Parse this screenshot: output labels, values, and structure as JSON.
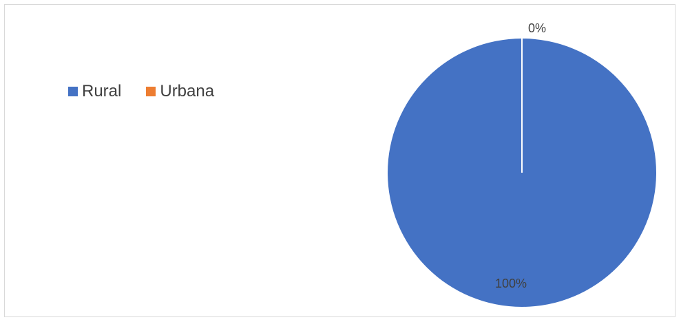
{
  "chart_data": {
    "type": "pie",
    "categories": [
      "Rural",
      "Urbana"
    ],
    "values": [
      100,
      0
    ],
    "data_labels": [
      "100%",
      "0%"
    ],
    "colors": [
      "#4472c4",
      "#ed7d31"
    ],
    "legend_position": "top-left",
    "title": ""
  }
}
